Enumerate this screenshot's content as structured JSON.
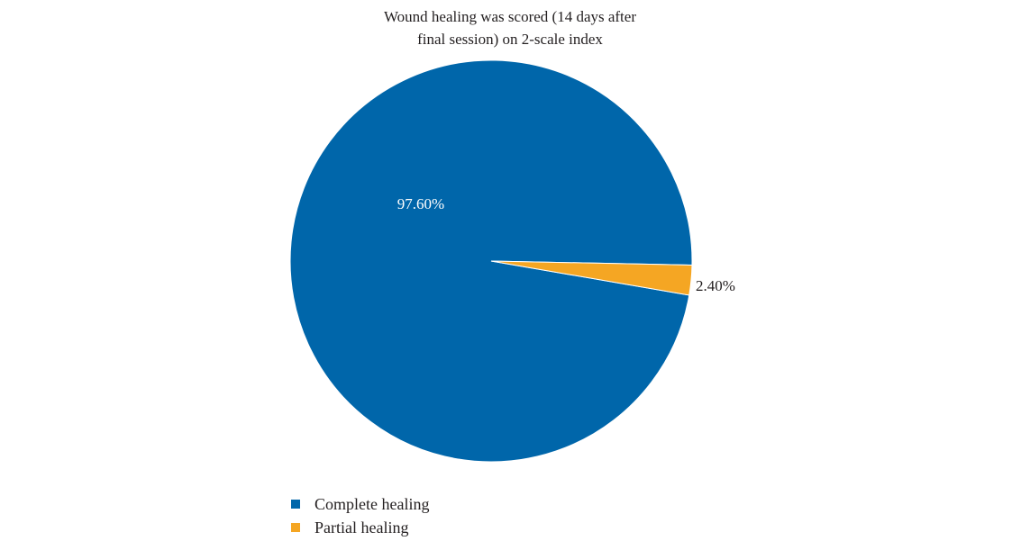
{
  "chart_data": {
    "type": "pie",
    "title_lines": [
      "Wound healing was scored (14 days after",
      "final session) on 2-scale index"
    ],
    "slices": [
      {
        "label": "Complete healing",
        "value": 97.6,
        "display": "97.60%",
        "color": "#0066aa"
      },
      {
        "label": "Partial healing",
        "value": 2.4,
        "display": "2.40%",
        "color": "#f5a623"
      }
    ],
    "legend_position": "bottom-left"
  }
}
